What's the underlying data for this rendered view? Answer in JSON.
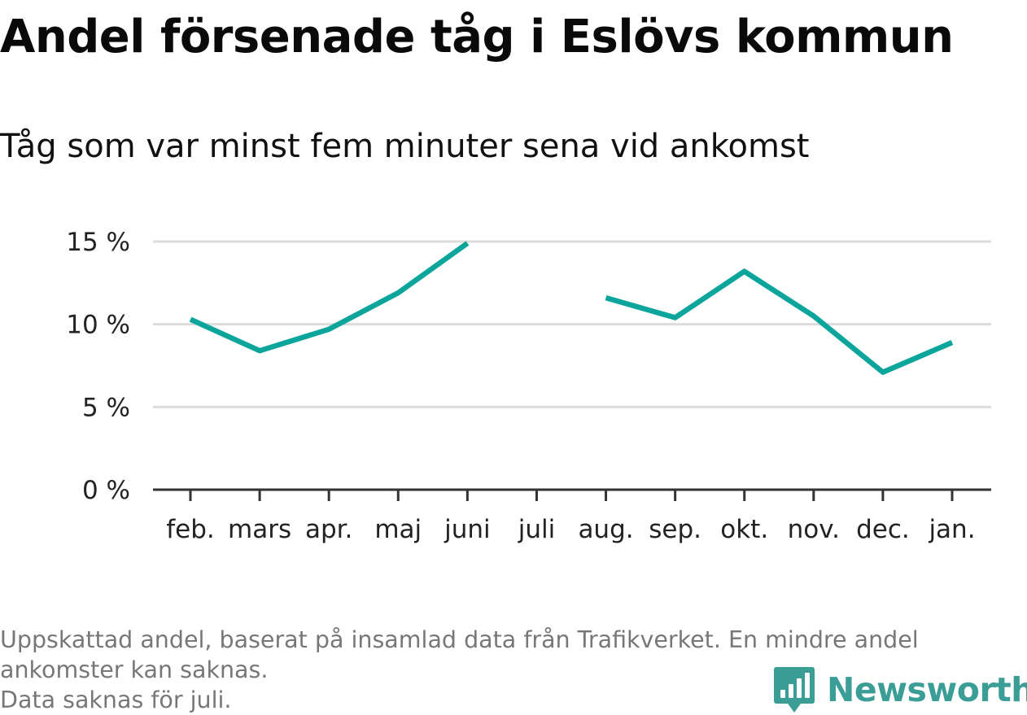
{
  "header": {
    "title": "Andel försenade tåg i Eslövs kommun",
    "subtitle": "Tåg som var minst fem minuter sena vid ankomst"
  },
  "chart_data": {
    "type": "line",
    "categories": [
      "feb.",
      "mars",
      "apr.",
      "maj",
      "juni",
      "juli",
      "aug.",
      "sep.",
      "okt.",
      "nov.",
      "dec.",
      "jan."
    ],
    "series": [
      {
        "values": [
          10.3,
          8.4,
          9.7,
          11.9,
          14.9,
          null,
          11.6,
          10.4,
          13.2,
          10.5,
          7.1,
          8.9
        ]
      }
    ],
    "y_ticks": [
      0,
      5,
      10,
      15
    ],
    "y_tick_labels": [
      "0 %",
      "5 %",
      "10 %",
      "15 %"
    ],
    "ylim": [
      0,
      15
    ],
    "grid": true,
    "colors": {
      "line": "#0ba59c",
      "grid": "#dcdcdc",
      "axis": "#333333"
    }
  },
  "footer": {
    "note_line1": "Uppskattad andel, baserat på insamlad data från Trafikverket. En mindre andel",
    "note_line2": "ankomster kan saknas.",
    "note_line3": "Data saknas för juli."
  },
  "brand": {
    "name": "Newsworthy",
    "icon": "newsworthy-logo-icon",
    "color": "#3a9e96"
  }
}
